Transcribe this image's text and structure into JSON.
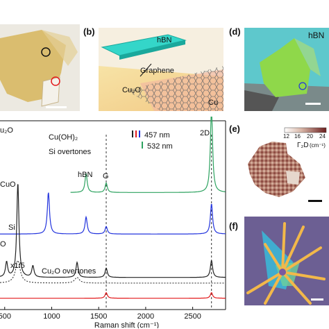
{
  "panels": {
    "b": {
      "label": "(b)",
      "hbn": "hBN",
      "graphene": "Graphene",
      "cu2o": "Cu₂O",
      "cu": "Cu"
    },
    "d": {
      "label": "(d)",
      "hbn": "hBN"
    },
    "e": {
      "label": "(e)",
      "colorbar_ticks": [
        "12",
        "16",
        "20",
        "24"
      ],
      "colorbar_title": "Γ₂D",
      "colorbar_unit": "(cm⁻¹)"
    },
    "f": {
      "label": "(f)"
    }
  },
  "spectrum": {
    "annotations": {
      "cu2o_top": "u₂O",
      "cuo": "CuO",
      "cuoh2": "Cu(OH)₂",
      "si_overtones": "Si overtones",
      "hbn": "hBN",
      "g": "G",
      "twod": "2D",
      "si": "Si",
      "x15": "x1/5",
      "cu2o_overtones": "Cu₂O overtones",
      "o_left": "O"
    },
    "legend": {
      "l457": "457 nm",
      "l532": "532 nm",
      "c_black": "#222222",
      "c_red": "#e31a1c",
      "c_blue": "#2233dd",
      "c_green": "#2ca25f"
    }
  },
  "chart_data": {
    "type": "line",
    "xlabel": "Raman shift (cm⁻¹)",
    "ylabel": "",
    "xlim": [
      450,
      2850
    ],
    "x_ticks": [
      "500",
      "1000",
      "1500",
      "2000",
      "2500"
    ],
    "reference_lines": [
      1580,
      2700
    ],
    "series": [
      {
        "name": "532 nm",
        "color": "#2ca25f",
        "offset": 0.62,
        "peaks": [
          [
            1366,
            0.1
          ],
          [
            1580,
            0.05
          ],
          [
            2700,
            0.45
          ]
        ]
      },
      {
        "name": "457 nm",
        "color": "#2233dd",
        "offset": 0.4,
        "peaks": [
          [
            965,
            0.22
          ],
          [
            1366,
            0.09
          ],
          [
            1580,
            0.04
          ],
          [
            2700,
            0.16
          ]
        ]
      },
      {
        "name": "457 nm",
        "color": "#222222",
        "offset": 0.17,
        "peaks": [
          [
            520,
            0.08
          ],
          [
            640,
            0.5
          ],
          [
            800,
            0.06
          ],
          [
            1270,
            0.08
          ],
          [
            1580,
            0.05
          ],
          [
            2700,
            0.09
          ]
        ]
      },
      {
        "name": "457 nm",
        "color": "#e31a1c",
        "offset": 0.06,
        "peaks": [
          [
            1580,
            0.03
          ],
          [
            2700,
            0.03
          ]
        ]
      }
    ]
  }
}
